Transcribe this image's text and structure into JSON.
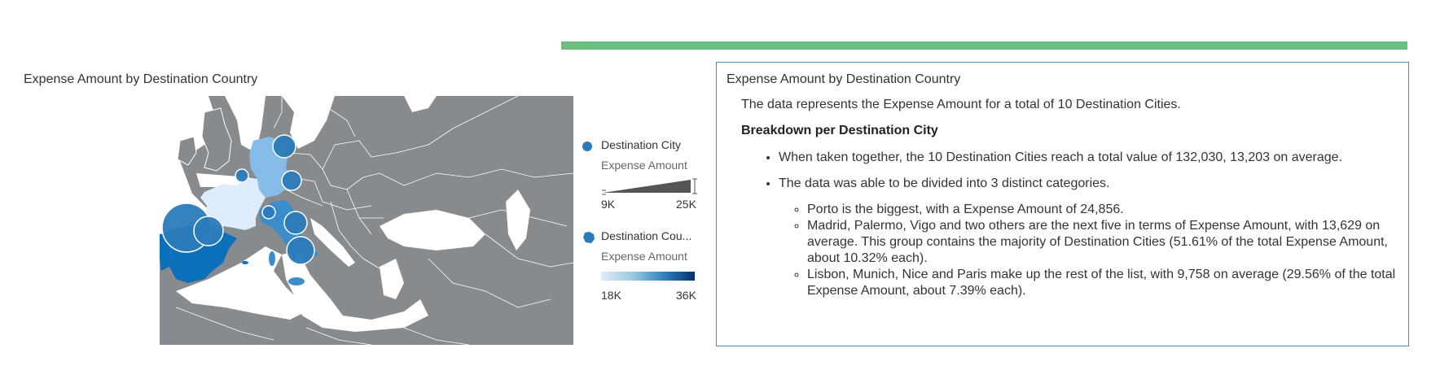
{
  "progress": {
    "fraction": 1.0,
    "color": "#6cbf80"
  },
  "map": {
    "title": "Expense Amount by Destination Country",
    "colors": {
      "land_other": "#888b8e",
      "sea": "#ffffff",
      "bubble": "#2b7bba"
    },
    "legend": {
      "size_series": "Destination City",
      "size_measure": "Expense Amount",
      "size_min": "9K",
      "size_max": "25K",
      "color_series": "Destination Cou...",
      "color_measure": "Expense Amount",
      "color_min": "18K",
      "color_max": "36K"
    },
    "countries": [
      {
        "name": "Spain",
        "shade": "#0b6fba"
      },
      {
        "name": "Portugal",
        "shade": "#0b6fba"
      },
      {
        "name": "Italy",
        "shade": "#3a8ccb"
      },
      {
        "name": "Germany",
        "shade": "#86bce7"
      },
      {
        "name": "France",
        "shade": "#dcecfb"
      }
    ]
  },
  "summary": {
    "title": "Expense Amount by Destination Country",
    "intro": "The data represents the Expense Amount for a total of 10 Destination Cities.",
    "heading": "Breakdown per Destination City",
    "bullets": [
      "When taken together, the 10 Destination Cities reach a total value of 132,030, 13,203 on average.",
      "The data was able to be divided into 3 distinct categories."
    ],
    "sub_bullets": [
      "Porto is the biggest, with a Expense Amount of 24,856.",
      "Madrid, Palermo, Vigo and two others are the next five in terms of Expense Amount, with 13,629 on average. This group contains the majority of Destination Cities (51.61% of the total Expense Amount, about 10.32% each).",
      "Lisbon, Munich, Nice and Paris make up the rest of the list, with 9,758 on average (29.56% of the total Expense Amount, about 7.39% each)."
    ]
  }
}
